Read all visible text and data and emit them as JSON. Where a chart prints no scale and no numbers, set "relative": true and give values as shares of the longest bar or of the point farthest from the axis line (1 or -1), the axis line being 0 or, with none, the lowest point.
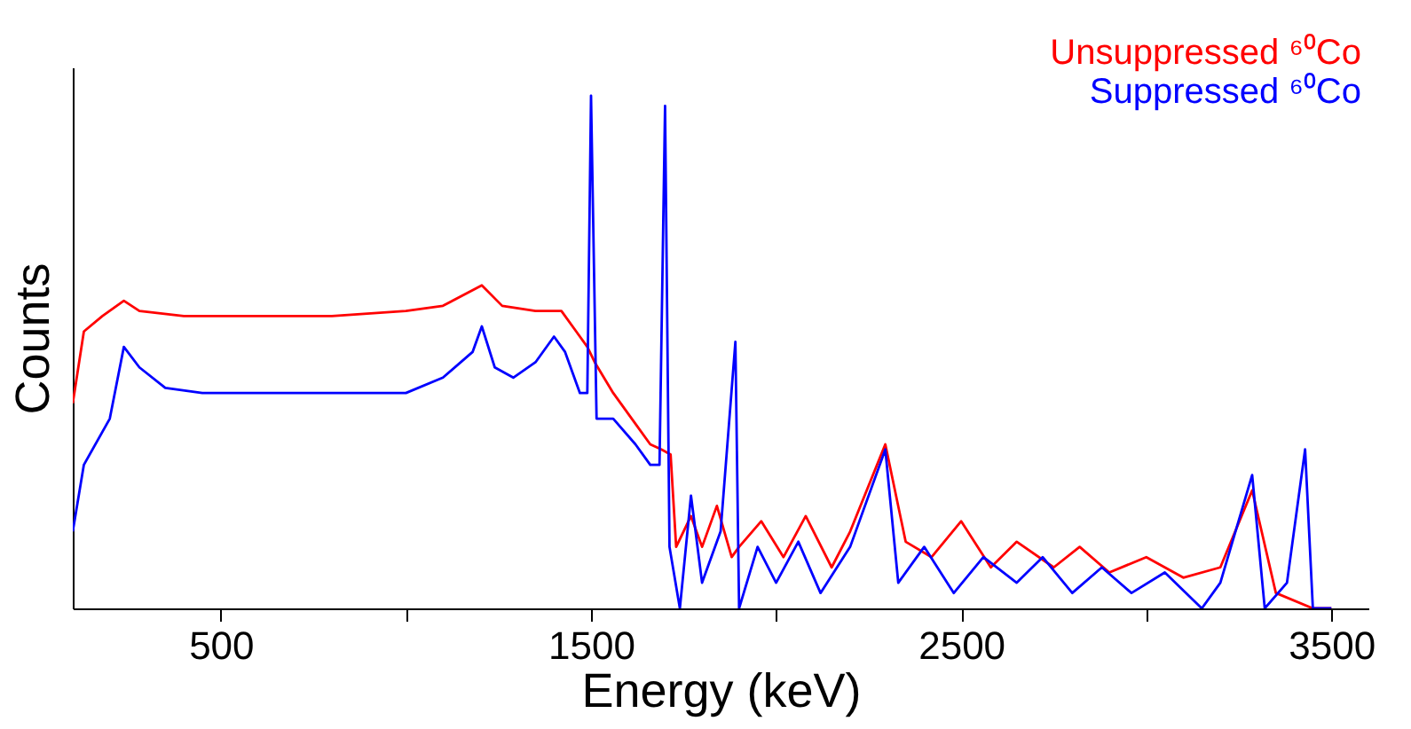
{
  "chart_data": {
    "type": "line",
    "relative": true,
    "xlabel": "Energy (keV)",
    "ylabel": "Counts",
    "xlim": [
      100,
      3600
    ],
    "xticks": [
      500,
      {
        "value": 1000,
        "label": null
      },
      1500,
      {
        "value": 2000,
        "label": null
      },
      2500,
      {
        "value": 3000,
        "label": null
      },
      3500
    ],
    "tick_labels": "x",
    "grid": false,
    "legend": "top right",
    "marker": "none",
    "line_style": "solid",
    "series": [
      {
        "name": "Unsuppressed ⁶⁰Co",
        "color": "#ff0000",
        "x": [
          100,
          130,
          180,
          238,
          280,
          400,
          600,
          800,
          1000,
          1100,
          1205,
          1260,
          1350,
          1420,
          1460,
          1490,
          1510,
          1560,
          1620,
          1660,
          1690,
          1715,
          1730,
          1770,
          1800,
          1840,
          1880,
          1900,
          1960,
          2020,
          2080,
          2150,
          2200,
          2295,
          2350,
          2420,
          2500,
          2580,
          2650,
          2750,
          2820,
          2900,
          3000,
          3100,
          3200,
          3286,
          3350,
          3450,
          3500
        ],
        "values": [
          0.4,
          0.54,
          0.57,
          0.6,
          0.58,
          0.57,
          0.57,
          0.57,
          0.58,
          0.59,
          0.63,
          0.59,
          0.58,
          0.58,
          0.54,
          0.51,
          0.48,
          0.42,
          0.36,
          0.32,
          0.31,
          0.3,
          0.12,
          0.18,
          0.12,
          0.2,
          0.1,
          0.12,
          0.17,
          0.1,
          0.18,
          0.08,
          0.15,
          0.32,
          0.13,
          0.1,
          0.17,
          0.08,
          0.13,
          0.08,
          0.12,
          0.07,
          0.1,
          0.06,
          0.08,
          0.23,
          0.03,
          0,
          0
        ]
      },
      {
        "name": "Suppressed ⁶⁰Co",
        "color": "#0000ff",
        "x": [
          100,
          130,
          200,
          238,
          280,
          350,
          450,
          600,
          800,
          1000,
          1100,
          1180,
          1205,
          1240,
          1290,
          1350,
          1400,
          1430,
          1470,
          1490,
          1500,
          1515,
          1560,
          1620,
          1660,
          1685,
          1700,
          1712,
          1740,
          1770,
          1800,
          1850,
          1890,
          1900,
          1950,
          2000,
          2060,
          2120,
          2200,
          2295,
          2330,
          2400,
          2480,
          2560,
          2650,
          2720,
          2800,
          2880,
          2960,
          3050,
          3150,
          3200,
          3286,
          3320,
          3380,
          3429,
          3450,
          3500
        ],
        "values": [
          0.15,
          0.28,
          0.37,
          0.51,
          0.47,
          0.43,
          0.42,
          0.42,
          0.42,
          0.42,
          0.45,
          0.5,
          0.55,
          0.47,
          0.45,
          0.48,
          0.53,
          0.5,
          0.42,
          0.42,
          1.0,
          0.37,
          0.37,
          0.32,
          0.28,
          0.28,
          0.98,
          0.12,
          0,
          0.22,
          0.05,
          0.15,
          0.52,
          0,
          0.12,
          0.05,
          0.13,
          0.03,
          0.12,
          0.31,
          0.05,
          0.12,
          0.03,
          0.1,
          0.05,
          0.1,
          0.03,
          0.08,
          0.03,
          0.07,
          0,
          0.05,
          0.26,
          0,
          0.05,
          0.31,
          0,
          0
        ]
      }
    ]
  }
}
